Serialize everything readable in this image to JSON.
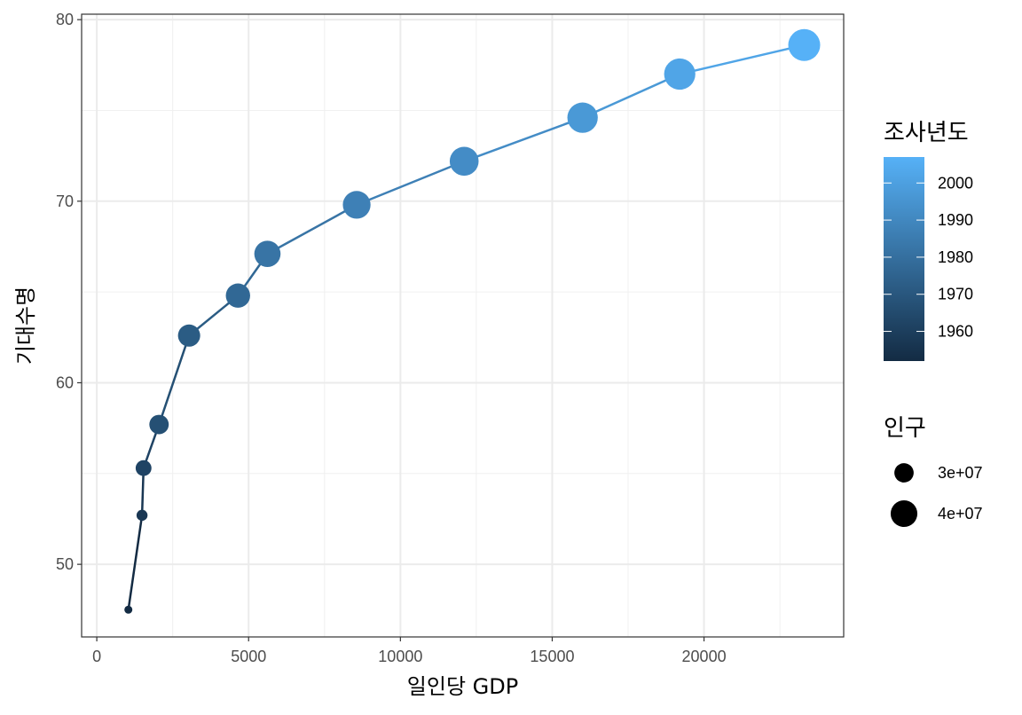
{
  "chart_data": {
    "type": "scatter",
    "xlabel": "일인당 GDP",
    "ylabel": "기대수명",
    "xlim": [
      -500,
      24600
    ],
    "ylim": [
      46.0,
      80.3
    ],
    "x_ticks": [
      0,
      5000,
      10000,
      15000,
      20000
    ],
    "y_ticks": [
      50,
      60,
      70,
      80
    ],
    "grid": true,
    "connected": true,
    "legend_position": "right",
    "series": [
      {
        "x": [
          1040,
          1490,
          1540,
          2050,
          3040,
          4650,
          5620,
          8560,
          12100,
          16000,
          19200,
          23300
        ],
        "y": [
          47.5,
          52.7,
          55.3,
          57.7,
          62.6,
          64.8,
          67.1,
          69.8,
          72.2,
          74.6,
          77.0,
          78.6
        ],
        "year": [
          1952,
          1957,
          1962,
          1967,
          1972,
          1977,
          1982,
          1987,
          1992,
          1997,
          2002,
          2007
        ],
        "pop": [
          20900000,
          22600000,
          26400000,
          30100000,
          33500000,
          36400000,
          39300000,
          41600000,
          43600000,
          46200000,
          47700000,
          49000000
        ]
      }
    ],
    "color_legend": {
      "title": "조사년도",
      "range": [
        1952,
        2007
      ],
      "breaks": [
        1960,
        1970,
        1980,
        1990,
        2000
      ],
      "labels": [
        "1960",
        "1970",
        "1980",
        "1990",
        "2000"
      ],
      "low_color": "#132B43",
      "high_color": "#56B1F7"
    },
    "size_legend": {
      "title": "인구",
      "breaks": [
        30000000,
        40000000
      ],
      "labels": [
        "3e+07",
        "4e+07"
      ]
    }
  }
}
